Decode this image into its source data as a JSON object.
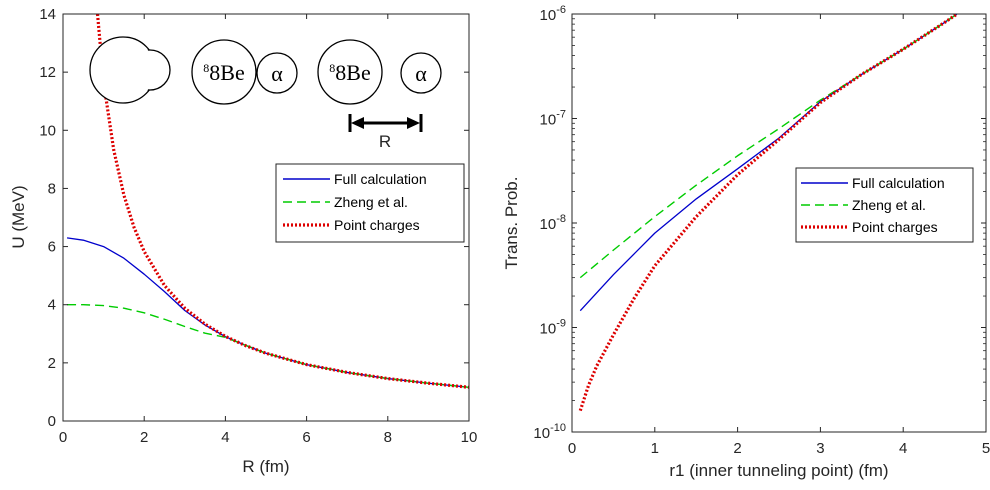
{
  "chart_data": [
    {
      "type": "line",
      "xlabel": "R (fm)",
      "ylabel": "U (MeV)",
      "xlim": [
        0,
        10
      ],
      "ylim": [
        0,
        14
      ],
      "xticks": [
        0,
        2,
        4,
        6,
        8,
        10
      ],
      "yticks": [
        0,
        2,
        4,
        6,
        8,
        10,
        12,
        14
      ],
      "legend_position": "right-middle",
      "diagram": {
        "nucleus1": "8Be",
        "nucleus2": "α",
        "separation_label": "R"
      },
      "series": [
        {
          "name": "Full calculation",
          "color": "#0000cc",
          "style": "solid",
          "points": [
            [
              0.1,
              6.3
            ],
            [
              0.5,
              6.22
            ],
            [
              1,
              6.0
            ],
            [
              1.5,
              5.6
            ],
            [
              2,
              5.05
            ],
            [
              2.5,
              4.45
            ],
            [
              3,
              3.8
            ],
            [
              3.5,
              3.3
            ],
            [
              4,
              2.9
            ],
            [
              4.5,
              2.6
            ],
            [
              5,
              2.33
            ],
            [
              6,
              1.94
            ],
            [
              7,
              1.67
            ],
            [
              8,
              1.46
            ],
            [
              9,
              1.3
            ],
            [
              10,
              1.16
            ]
          ]
        },
        {
          "name": "Zheng et al.",
          "color": "#00cc00",
          "style": "dashed",
          "points": [
            [
              0.1,
              4.0
            ],
            [
              0.5,
              4.0
            ],
            [
              1,
              3.97
            ],
            [
              1.5,
              3.88
            ],
            [
              2,
              3.72
            ],
            [
              2.5,
              3.5
            ],
            [
              3,
              3.25
            ],
            [
              3.5,
              3.02
            ],
            [
              4,
              2.88
            ],
            [
              4.5,
              2.6
            ],
            [
              5,
              2.33
            ],
            [
              6,
              1.94
            ],
            [
              7,
              1.67
            ],
            [
              8,
              1.46
            ],
            [
              9,
              1.3
            ],
            [
              10,
              1.16
            ]
          ]
        },
        {
          "name": "Point charges",
          "color": "#dd0000",
          "style": "dotted",
          "points": [
            [
              0.85,
              14
            ],
            [
              1,
              11.65
            ],
            [
              1.25,
              9.32
            ],
            [
              1.5,
              7.77
            ],
            [
              1.75,
              6.66
            ],
            [
              2,
              5.83
            ],
            [
              2.5,
              4.66
            ],
            [
              3,
              3.88
            ],
            [
              3.5,
              3.33
            ],
            [
              4,
              2.91
            ],
            [
              4.5,
              2.59
            ],
            [
              5,
              2.33
            ],
            [
              6,
              1.94
            ],
            [
              7,
              1.67
            ],
            [
              8,
              1.46
            ],
            [
              9,
              1.3
            ],
            [
              10,
              1.16
            ]
          ]
        }
      ]
    },
    {
      "type": "line",
      "xlabel": "r1 (inner tunneling point) (fm)",
      "ylabel": "Trans. Prob.",
      "xlim": [
        0,
        5
      ],
      "ylim": [
        1e-10,
        1e-06
      ],
      "yscale": "log",
      "xticks": [
        0,
        1,
        2,
        3,
        4,
        5
      ],
      "yticks": [
        -10,
        -9,
        -8,
        -7,
        -6
      ],
      "legend_position": "right-middle",
      "series": [
        {
          "name": "Full calculation",
          "color": "#0000cc",
          "style": "solid",
          "points": [
            [
              0.1,
              1.45e-09
            ],
            [
              0.5,
              3.2e-09
            ],
            [
              1,
              8e-09
            ],
            [
              1.5,
              1.7e-08
            ],
            [
              2,
              3.3e-08
            ],
            [
              2.5,
              6.5e-08
            ],
            [
              3,
              1.45e-07
            ],
            [
              3.5,
              2.65e-07
            ],
            [
              4,
              4.6e-07
            ],
            [
              4.5,
              8.3e-07
            ],
            [
              4.65,
              1e-06
            ]
          ]
        },
        {
          "name": "Zheng et al.",
          "color": "#00cc00",
          "style": "dashed",
          "points": [
            [
              0.1,
              3e-09
            ],
            [
              0.5,
              5.5e-09
            ],
            [
              1,
              1.15e-08
            ],
            [
              1.5,
              2.3e-08
            ],
            [
              2,
              4.4e-08
            ],
            [
              2.5,
              8e-08
            ],
            [
              3,
              1.5e-07
            ],
            [
              3.5,
              2.65e-07
            ],
            [
              4,
              4.6e-07
            ],
            [
              4.5,
              8.3e-07
            ],
            [
              4.65,
              1e-06
            ]
          ]
        },
        {
          "name": "Point charges",
          "color": "#dd0000",
          "style": "dotted",
          "points": [
            [
              0.1,
              1.6e-10
            ],
            [
              0.2,
              2.8e-10
            ],
            [
              0.3,
              4.3e-10
            ],
            [
              0.5,
              8.5e-10
            ],
            [
              0.75,
              1.9e-09
            ],
            [
              1,
              3.9e-09
            ],
            [
              1.5,
              1.15e-08
            ],
            [
              2,
              2.9e-08
            ],
            [
              2.5,
              6.3e-08
            ],
            [
              3,
              1.42e-07
            ],
            [
              3.5,
              2.65e-07
            ],
            [
              4,
              4.6e-07
            ],
            [
              4.5,
              8.3e-07
            ],
            [
              4.65,
              1e-06
            ]
          ]
        }
      ]
    }
  ]
}
